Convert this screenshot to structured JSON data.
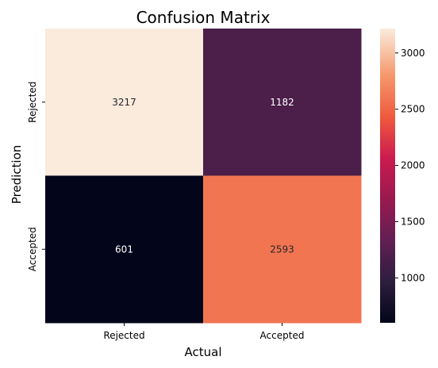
{
  "chart_data": {
    "type": "heatmap",
    "title": "Confusion Matrix",
    "xlabel": "Actual",
    "ylabel": "Prediction",
    "x_categories": [
      "Rejected",
      "Accepted"
    ],
    "y_categories": [
      "Rejected",
      "Accepted"
    ],
    "values": [
      [
        3217,
        1182
      ],
      [
        601,
        2593
      ]
    ],
    "colormap": "rocket",
    "colorbar": {
      "range": [
        601,
        3217
      ],
      "ticks": [
        1000,
        1500,
        2000,
        2500,
        3000
      ],
      "tick_labels": [
        "1000",
        "1500",
        "2000",
        "2500",
        "3000"
      ]
    },
    "grid": false
  }
}
